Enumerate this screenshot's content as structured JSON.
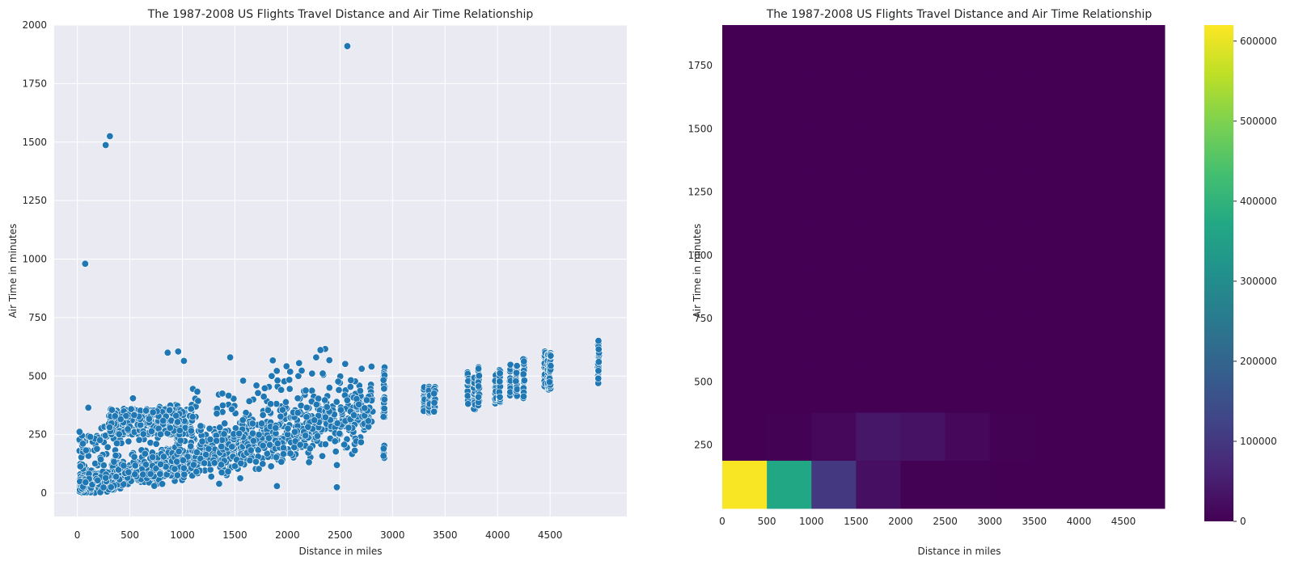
{
  "chart_data": [
    {
      "type": "scatter",
      "title": "The 1987-2008 US Flights Travel Distance and Air Time Relationship",
      "xlabel": "Distance in miles",
      "ylabel": "Air Time in minutes",
      "xlim": [
        -220,
        5230
      ],
      "ylim": [
        -100,
        2000
      ],
      "xticks": [
        0,
        500,
        1000,
        1500,
        2000,
        2500,
        3000,
        3500,
        4000,
        4500
      ],
      "yticks": [
        0,
        250,
        500,
        750,
        1000,
        1250,
        1500,
        1750,
        2000
      ],
      "grid": true,
      "marker_color": "#1f77b4",
      "outliers": [
        {
          "x": 75,
          "y": 980
        },
        {
          "x": 270,
          "y": 1487
        },
        {
          "x": 310,
          "y": 1525
        },
        {
          "x": 2570,
          "y": 1910
        },
        {
          "x": 860,
          "y": 600
        },
        {
          "x": 960,
          "y": 605
        },
        {
          "x": 1015,
          "y": 565
        },
        {
          "x": 1455,
          "y": 580
        },
        {
          "x": 1705,
          "y": 460
        },
        {
          "x": 1850,
          "y": 500
        },
        {
          "x": 2470,
          "y": 25
        },
        {
          "x": 1900,
          "y": 30
        },
        {
          "x": 1350,
          "y": 40
        },
        {
          "x": 105,
          "y": 365
        },
        {
          "x": 720,
          "y": 345
        },
        {
          "x": 530,
          "y": 405
        }
      ],
      "clusters": [
        {
          "x": 3300,
          "ymin": 350,
          "ymax": 460
        },
        {
          "x": 3350,
          "ymin": 340,
          "ymax": 455
        },
        {
          "x": 3400,
          "ymin": 345,
          "ymax": 460
        },
        {
          "x": 3720,
          "ymin": 375,
          "ymax": 520
        },
        {
          "x": 3780,
          "ymin": 355,
          "ymax": 510
        },
        {
          "x": 3820,
          "ymin": 370,
          "ymax": 540
        },
        {
          "x": 3980,
          "ymin": 380,
          "ymax": 510
        },
        {
          "x": 4020,
          "ymin": 375,
          "ymax": 530
        },
        {
          "x": 4120,
          "ymin": 415,
          "ymax": 560
        },
        {
          "x": 4180,
          "ymin": 410,
          "ymax": 545
        },
        {
          "x": 4250,
          "ymin": 400,
          "ymax": 575
        },
        {
          "x": 4450,
          "ymin": 450,
          "ymax": 605
        },
        {
          "x": 4480,
          "ymin": 440,
          "ymax": 600
        },
        {
          "x": 4500,
          "ymin": 445,
          "ymax": 600
        },
        {
          "x": 4960,
          "ymin": 460,
          "ymax": 655
        },
        {
          "x": 2920,
          "ymin": 320,
          "ymax": 545
        },
        {
          "x": 2920,
          "ymin": 150,
          "ymax": 210
        }
      ]
    },
    {
      "type": "heatmap",
      "title": "The 1987-2008 US Flights Travel Distance and Air Time Relationship",
      "xlabel": "Distance in miles",
      "ylabel": "Air Time in minutes",
      "x_edges": [
        0,
        500,
        1000,
        1500,
        2000,
        2500,
        3000,
        3500,
        4000,
        4500,
        4962
      ],
      "y_edges": [
        0,
        190,
        380,
        570,
        760,
        950,
        1140,
        1330,
        1520,
        1710,
        1910
      ],
      "xticks": [
        0,
        500,
        1000,
        1500,
        2000,
        2500,
        3000,
        3500,
        4000,
        4500
      ],
      "yticks": [
        250,
        500,
        750,
        1000,
        1250,
        1500,
        1750
      ],
      "counts": [
        [
          615000,
          370000,
          100000,
          25000,
          2000,
          1000,
          500,
          200,
          100,
          50
        ],
        [
          500,
          2000,
          12000,
          38000,
          30000,
          12000,
          1500,
          800,
          400,
          150
        ],
        [
          20,
          50,
          100,
          200,
          300,
          600,
          400,
          300,
          300,
          200
        ],
        [
          5,
          5,
          5,
          5,
          0,
          0,
          0,
          0,
          0,
          0
        ],
        [
          0,
          1,
          0,
          0,
          0,
          0,
          0,
          0,
          0,
          0
        ],
        [
          0,
          0,
          0,
          0,
          0,
          0,
          0,
          0,
          0,
          0
        ],
        [
          0,
          0,
          0,
          0,
          0,
          0,
          0,
          0,
          0,
          0
        ],
        [
          0,
          2,
          0,
          0,
          0,
          0,
          0,
          0,
          0,
          0
        ],
        [
          0,
          0,
          0,
          0,
          0,
          0,
          0,
          0,
          0,
          0
        ],
        [
          0,
          0,
          0,
          0,
          0,
          1,
          0,
          0,
          0,
          0
        ]
      ],
      "colormap": "viridis",
      "colorbar": {
        "vmin": 0,
        "vmax": 620000,
        "ticks": [
          0,
          100000,
          200000,
          300000,
          400000,
          500000,
          600000
        ]
      }
    }
  ]
}
